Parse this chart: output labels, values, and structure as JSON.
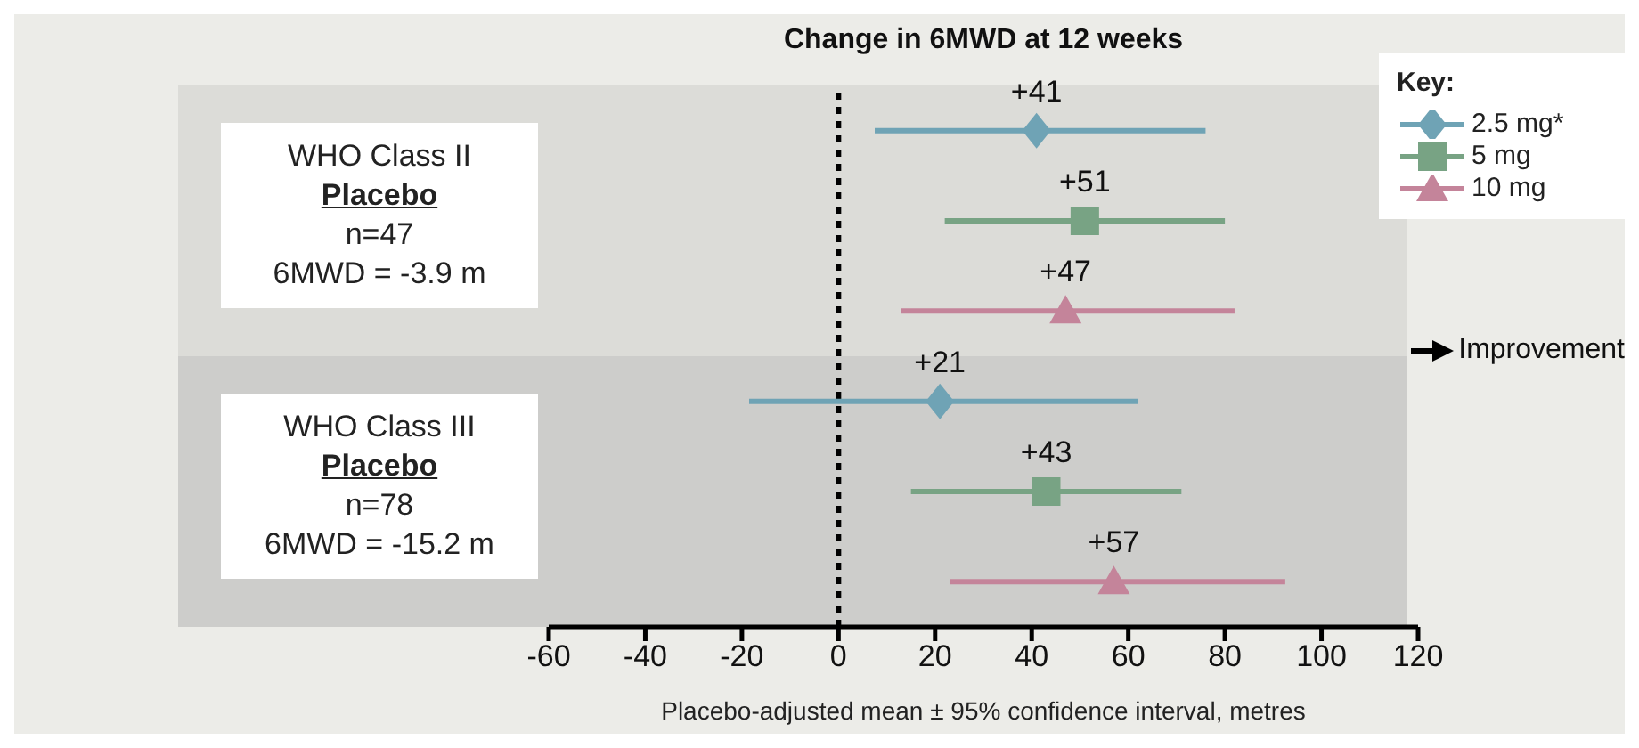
{
  "chart_data": {
    "type": "scatter",
    "orientation": "horizontal",
    "title": "Change in 6MWD at 12 weeks",
    "xlabel": "Placebo-adjusted mean ± 95% confidence interval, metres",
    "categories": [
      null,
      "WHO Class II",
      null,
      null,
      "WHO Class III",
      null
    ],
    "series": [
      {
        "name": "2.5 mg*",
        "color": "#6fa3b5",
        "marker": "diamond",
        "values": [
          41,
          null,
          null,
          21,
          null,
          null
        ],
        "errors": [
          [
            7.5,
            76
          ],
          null,
          null,
          [
            -18.5,
            62
          ],
          null,
          null
        ],
        "value_labels": [
          "+41",
          null,
          null,
          "+21",
          null,
          null
        ]
      },
      {
        "name": "5 mg",
        "color": "#78a384",
        "marker": "square",
        "values": [
          null,
          51,
          null,
          null,
          43,
          null
        ],
        "errors": [
          null,
          [
            22,
            80
          ],
          null,
          null,
          [
            15,
            71
          ],
          null
        ],
        "value_labels": [
          null,
          "+51",
          null,
          null,
          "+43",
          null
        ]
      },
      {
        "name": "10 mg",
        "color": "#c4849a",
        "marker": "triangle",
        "values": [
          null,
          null,
          47,
          null,
          null,
          57
        ],
        "errors": [
          null,
          null,
          [
            13,
            82
          ],
          null,
          null,
          [
            23,
            92.5
          ]
        ],
        "value_labels": [
          null,
          null,
          "+47",
          null,
          null,
          "+57"
        ]
      }
    ],
    "xlim": [
      -60,
      120
    ],
    "xticks": [
      -60,
      -40,
      -20,
      0,
      20,
      40,
      60,
      80,
      100,
      120
    ],
    "ref_lines": [
      {
        "axis": "x",
        "value": 0,
        "color": "#000000",
        "line_style": "dashed"
      }
    ],
    "legend": "top right",
    "legend_title": "Key:",
    "grid": false,
    "annotations": [
      "Placebo",
      "n=47",
      "6MWD = -3.9 m",
      "Placebo",
      "n=78",
      "6MWD = -15.2 m",
      "Improvement"
    ]
  }
}
